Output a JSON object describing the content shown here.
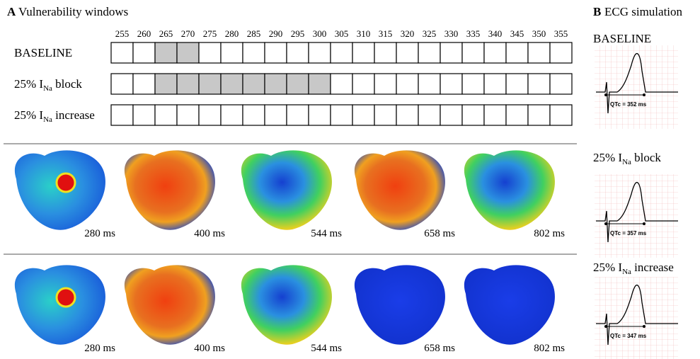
{
  "panel_a": {
    "letter": "A",
    "title": "Vulnerability windows",
    "columns": [
      255,
      260,
      265,
      270,
      275,
      280,
      285,
      290,
      295,
      300,
      305,
      310,
      315,
      320,
      325,
      330,
      335,
      340,
      345,
      350,
      355
    ],
    "rows": [
      {
        "label": {
          "text": "BASELINE"
        },
        "window": [
          265,
          270
        ]
      },
      {
        "label": {
          "prefix": "25% I",
          "sub": "Na",
          "suffix": " block"
        },
        "window": [
          265,
          300
        ]
      },
      {
        "label": {
          "prefix": "25% I",
          "sub": "Na",
          "suffix": " increase"
        }
      }
    ],
    "time_labels": [
      [
        "280 ms",
        "400 ms",
        "544 ms",
        "658 ms",
        "802 ms"
      ],
      [
        "280 ms",
        "400 ms",
        "544 ms",
        "658 ms",
        "802 ms"
      ]
    ]
  },
  "panel_b": {
    "letter": "B",
    "title": "ECG simulation",
    "panels": [
      {
        "label": {
          "text": "BASELINE"
        },
        "qtc": "QTc = 352 ms"
      },
      {
        "label": {
          "prefix": "25% I",
          "sub": "Na",
          "suffix": " block"
        },
        "qtc": "QTc = 357 ms"
      },
      {
        "label": {
          "prefix": "25% I",
          "sub": "Na",
          "suffix": " increase"
        },
        "qtc": "QTc = 347 ms"
      }
    ]
  }
}
